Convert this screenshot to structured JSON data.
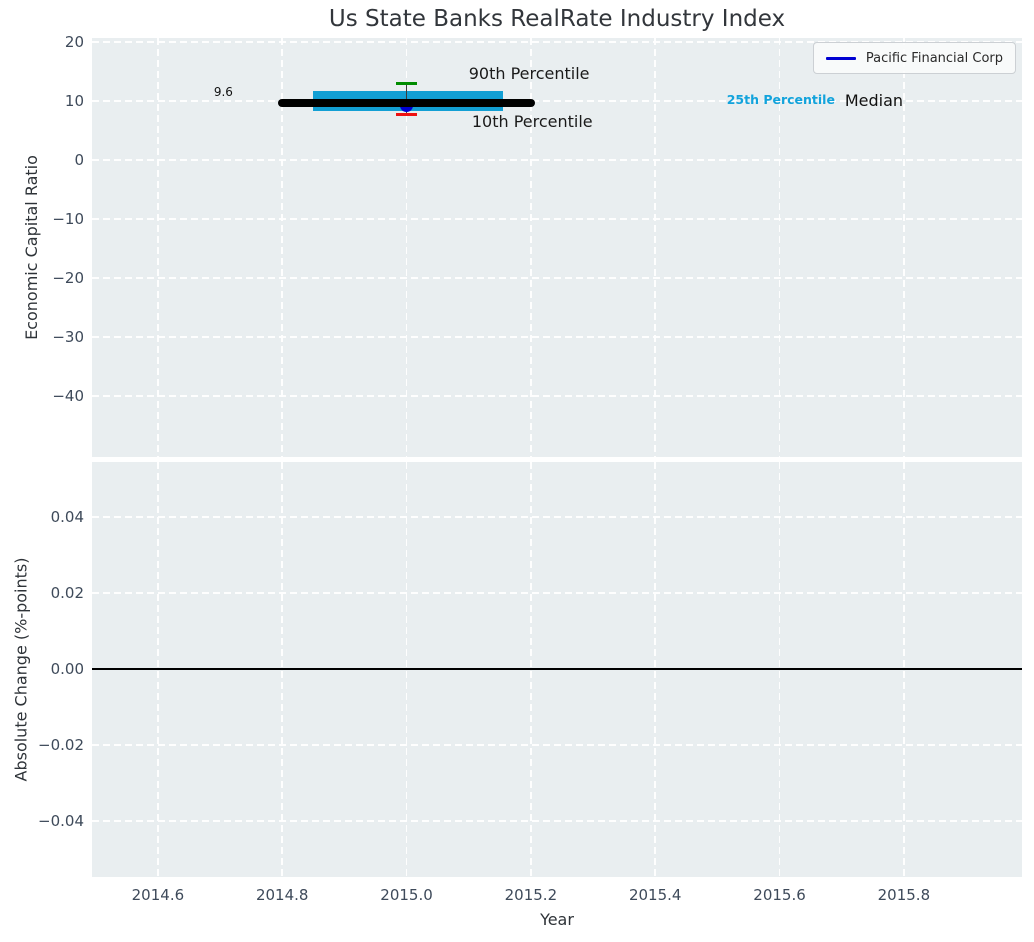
{
  "figure": {
    "title": "Us State Banks RealRate Industry Index",
    "colors": {
      "figure_bg": "#ffffff",
      "plot_bg": "#e9eef0",
      "grid": "#ffffff",
      "tick_text": "#3e4a5a",
      "title_text": "#32363b"
    }
  },
  "legend": {
    "label": "Pacific Financial Corp",
    "line_color": "#0000d2",
    "position": "upper right"
  },
  "chart_data": [
    {
      "type": "box-timeline",
      "title": "Us State Banks RealRate Industry Index",
      "ylabel": "Economic Capital Ratio",
      "xlim": [
        2014.494,
        2015.99
      ],
      "ylim": [
        -50.3,
        20.68
      ],
      "grid": true,
      "show_xtick_labels": false,
      "xticks": [
        {
          "v": 2014.6,
          "label": "2014.6"
        },
        {
          "v": 2014.8,
          "label": "2014.8"
        },
        {
          "v": 2015.0,
          "label": "2015.0"
        },
        {
          "v": 2015.2,
          "label": "2015.2"
        },
        {
          "v": 2015.4,
          "label": "2015.4"
        },
        {
          "v": 2015.6,
          "label": "2015.6"
        },
        {
          "v": 2015.8,
          "label": "2015.8"
        }
      ],
      "yticks": [
        {
          "v": 20,
          "label": "20"
        },
        {
          "v": 10,
          "label": "10"
        },
        {
          "v": 0,
          "label": "0"
        },
        {
          "v": -10,
          "label": "−10"
        },
        {
          "v": -20,
          "label": "−20"
        },
        {
          "v": -30,
          "label": "−30"
        },
        {
          "v": -40,
          "label": "−40"
        }
      ],
      "marks": {
        "median": {
          "name": "Median",
          "value": 9.6,
          "x_start": 2014.8,
          "x_end": 2015.2,
          "color": "#000000",
          "value_label": "9.6"
        },
        "percentile_band": {
          "name": "25th-75th Percentile",
          "y_low": 8.3,
          "y_high": 11.7,
          "x_start": 2014.85,
          "x_end": 2015.155,
          "color": "#129fd4"
        },
        "whisker": {
          "x": 2015.0,
          "from": 7.7,
          "to": 13.0,
          "color": "#3c3c3c"
        },
        "p90_cap": {
          "name": "90th Percentile",
          "x": 2015.0,
          "value": 13.0,
          "color": "#008c00"
        },
        "p10_cap": {
          "name": "10th Percentile",
          "x": 2015.0,
          "value": 7.7,
          "color": "#ee1111"
        },
        "company_point": {
          "name": "Pacific Financial Corp",
          "x": 2015.0,
          "value": 9.2,
          "color": "#0000d2"
        }
      },
      "annotations": [
        {
          "text": "9.6",
          "x": 2014.69,
          "y": 11.6,
          "font_size": 12,
          "color": "#111111",
          "weight": "normal"
        },
        {
          "text": "90th Percentile",
          "x": 2015.1,
          "y": 14.6,
          "font_size": 16,
          "color": "#1a1a1a",
          "weight": "normal"
        },
        {
          "text": "10th Percentile",
          "x": 2015.105,
          "y": 6.4,
          "font_size": 16,
          "color": "#1a1a1a",
          "weight": "normal"
        },
        {
          "text": "25th Percentile",
          "x": 2015.515,
          "y": 10.1,
          "font_size": 12.5,
          "color": "#12a3dc",
          "weight": "bold"
        },
        {
          "text": "Median",
          "x": 2015.705,
          "y": 10.0,
          "font_size": 16,
          "color": "#111111",
          "weight": "normal"
        }
      ]
    },
    {
      "type": "line",
      "ylabel": "Absolute Change (%-points)",
      "xlabel": "Year",
      "xlim": [
        2014.494,
        2015.99
      ],
      "ylim": [
        -0.0547,
        0.05447
      ],
      "grid": true,
      "show_xtick_labels": true,
      "xticks": [
        {
          "v": 2014.6,
          "label": "2014.6"
        },
        {
          "v": 2014.8,
          "label": "2014.8"
        },
        {
          "v": 2015.0,
          "label": "2015.0"
        },
        {
          "v": 2015.2,
          "label": "2015.2"
        },
        {
          "v": 2015.4,
          "label": "2015.4"
        },
        {
          "v": 2015.6,
          "label": "2015.6"
        },
        {
          "v": 2015.8,
          "label": "2015.8"
        }
      ],
      "yticks": [
        {
          "v": 0.04,
          "label": "0.04"
        },
        {
          "v": 0.02,
          "label": "0.02"
        },
        {
          "v": 0.0,
          "label": "0.00"
        },
        {
          "v": -0.02,
          "label": "−0.02"
        },
        {
          "v": -0.04,
          "label": "−0.04"
        }
      ],
      "zero_line": {
        "y": 0.0,
        "color": "#000000"
      },
      "series": []
    }
  ]
}
